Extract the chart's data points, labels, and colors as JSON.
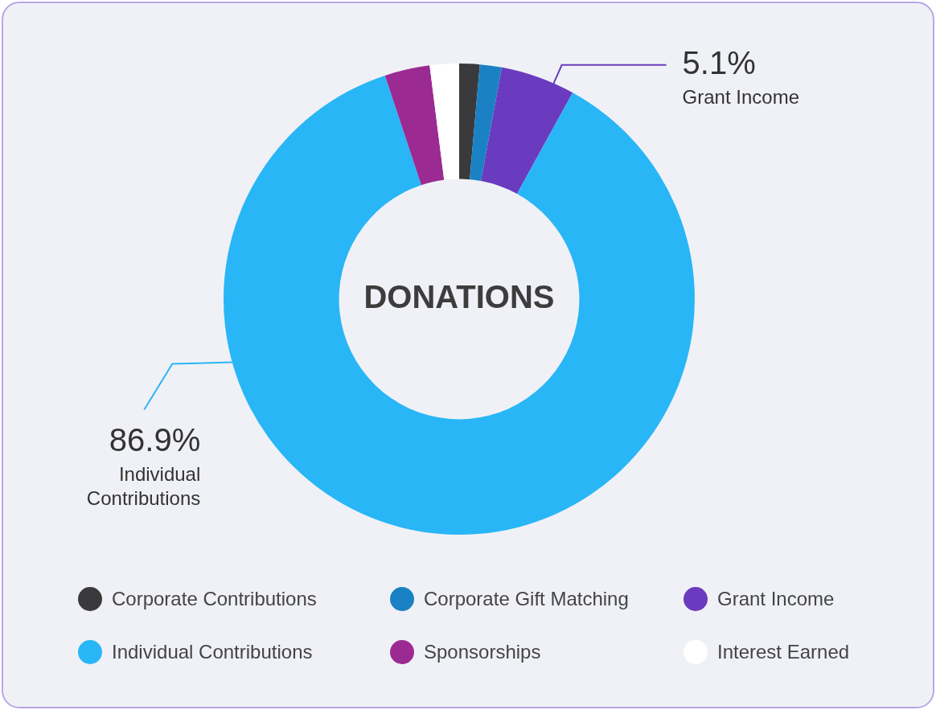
{
  "chart_data": {
    "type": "donut",
    "title": "DONATIONS",
    "categories": [
      "Corporate Contributions",
      "Corporate Gift Matching",
      "Grant Income",
      "Individual Contributions",
      "Sponsorships",
      "Interest Earned"
    ],
    "values": [
      1.4,
      1.5,
      5.1,
      86.9,
      3.1,
      2.0
    ],
    "colors": [
      "#3a3a3c",
      "#1a82c4",
      "#6a3bbf",
      "#29b6f6",
      "#9c2a93",
      "#ffffff"
    ],
    "value_labels": [
      null,
      null,
      "5.1%",
      "86.9%",
      null,
      null
    ],
    "legend": "bottom"
  }
}
